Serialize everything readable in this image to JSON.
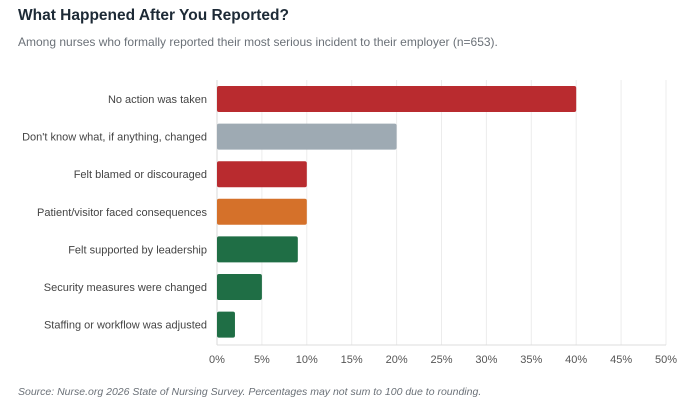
{
  "chart_data": {
    "type": "bar",
    "orientation": "horizontal",
    "title": "What Happened After You Reported?",
    "subtitle": "Among nurses who formally reported their most serious incident to their employer (n=653).",
    "categories": [
      "No action was taken",
      "Don't know what, if anything, changed",
      "Felt blamed or discouraged",
      "Patient/visitor faced consequences",
      "Felt supported by leadership",
      "Security measures were changed",
      "Staffing or workflow was adjusted"
    ],
    "values": [
      40,
      20,
      10,
      10,
      9,
      5,
      2
    ],
    "colors": [
      "#b92b2f",
      "#9eaab3",
      "#b92b2f",
      "#d5712a",
      "#1f6e45",
      "#1f6e45",
      "#1f6e45"
    ],
    "xlim": [
      0,
      50
    ],
    "xticks": [
      "0%",
      "5%",
      "10%",
      "15%",
      "20%",
      "25%",
      "30%",
      "35%",
      "40%",
      "45%",
      "50%"
    ],
    "xlabel": "",
    "ylabel": "",
    "grid": true,
    "source": "Source: Nurse.org 2026 State of Nursing Survey. Percentages may not sum to 100 due to rounding."
  }
}
